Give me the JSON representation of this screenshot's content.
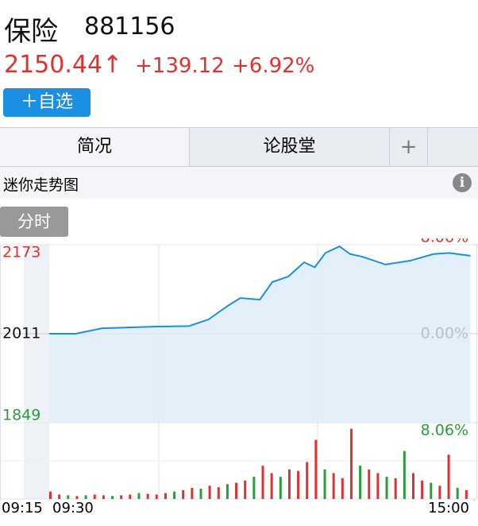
{
  "header": {
    "name": "保险",
    "code": "881156",
    "price": "2150.44↑",
    "change": "+139.12",
    "pct": "+6.92%",
    "button": "＋自选"
  },
  "tabs": [
    "简况",
    "论股堂",
    "+"
  ],
  "section": {
    "title": "迷你走势图",
    "mode": "分时"
  },
  "chart_data": {
    "type": "line",
    "series": [
      {
        "name": "price",
        "color": "#1a8fe3",
        "x": [
          0,
          15,
          30,
          61,
          79,
          90,
          101,
          108,
          119,
          126,
          135,
          144,
          150,
          156,
          164,
          170,
          177,
          190,
          204,
          217,
          226,
          238
        ],
        "values": [
          2011,
          2011,
          2021,
          2024,
          2025,
          2037,
          2062,
          2076,
          2073,
          2105,
          2115,
          2141,
          2132,
          2158,
          2170,
          2156,
          2151,
          2137,
          2144,
          2156,
          2158,
          2153
        ]
      }
    ],
    "xlim": [
      -15,
      240
    ],
    "xticks": [
      {
        "value": -15,
        "label": "09:15"
      },
      {
        "value": 0,
        "label": "09:30"
      },
      {
        "value": 240,
        "label": "15:00"
      }
    ],
    "ylim": [
      1849,
      2173
    ],
    "yticks": [
      1849,
      2011,
      2173
    ],
    "y2lim": [
      -8.06,
      8.06
    ],
    "y2ticks": [
      {
        "value": -8.06,
        "label": "8.06%"
      },
      {
        "value": 0,
        "label": "0.00%"
      },
      {
        "value": 8.06,
        "label": "8.06%"
      }
    ],
    "volume": {
      "x": [
        0,
        5,
        10,
        15,
        20,
        25,
        30,
        35,
        40,
        45,
        50,
        55,
        60,
        65,
        70,
        75,
        80,
        85,
        90,
        95,
        100,
        105,
        110,
        115,
        120,
        125,
        130,
        135,
        140,
        145,
        150,
        155,
        160,
        165,
        170,
        175,
        180,
        185,
        190,
        195,
        200,
        205,
        210,
        215,
        220,
        225,
        230,
        235
      ],
      "values": [
        10,
        6,
        5,
        4,
        5,
        6,
        5,
        4,
        5,
        6,
        8,
        7,
        6,
        8,
        10,
        12,
        15,
        14,
        18,
        16,
        20,
        22,
        25,
        30,
        45,
        35,
        30,
        40,
        38,
        50,
        80,
        40,
        35,
        28,
        95,
        45,
        40,
        35,
        30,
        28,
        65,
        35,
        25,
        22,
        18,
        60,
        15,
        12
      ],
      "colors": [
        "#e03030",
        "#e03030",
        "#2a9d3a",
        "#e03030",
        "#2a9d3a",
        "#e03030",
        "#e03030",
        "#2a9d3a",
        "#e03030",
        "#e03030",
        "#2a9d3a",
        "#e03030",
        "#e03030",
        "#e03030",
        "#2a9d3a",
        "#e03030",
        "#e03030",
        "#2a9d3a",
        "#e03030",
        "#e03030",
        "#2a9d3a",
        "#e03030",
        "#e03030",
        "#2a9d3a",
        "#e03030",
        "#e03030",
        "#2a9d3a",
        "#e03030",
        "#e03030",
        "#e03030",
        "#e03030",
        "#2a9d3a",
        "#e03030",
        "#e03030",
        "#e03030",
        "#2a9d3a",
        "#e03030",
        "#e03030",
        "#2a9d3a",
        "#e03030",
        "#2a9d3a",
        "#e03030",
        "#e03030",
        "#2a9d3a",
        "#e03030",
        "#e03030",
        "#2a9d3a",
        "#e03030"
      ],
      "ylim": [
        0,
        100
      ]
    }
  }
}
